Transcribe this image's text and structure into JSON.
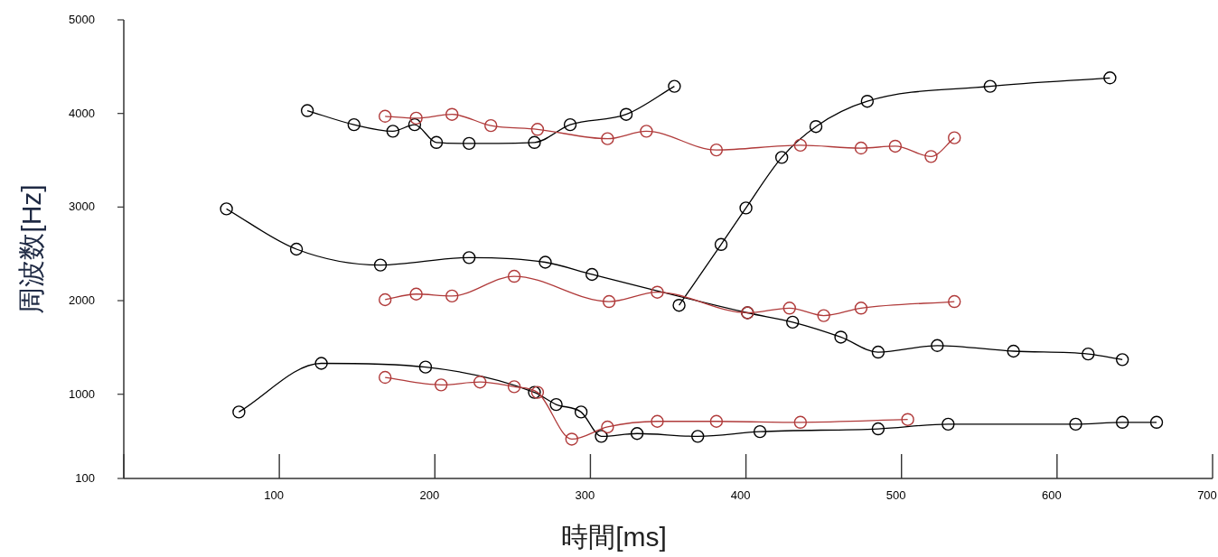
{
  "chart_data": {
    "type": "line",
    "xlabel": "時間[ms]",
    "ylabel": "周波数[Hz]",
    "xlim": [
      0,
      700
    ],
    "xticks": [
      {
        "value": 0,
        "label": null
      },
      100,
      200,
      300,
      400,
      500,
      600,
      700
    ],
    "ylim": [
      100,
      5000
    ],
    "yticks": [
      100,
      1000,
      2000,
      3000,
      4000,
      5000
    ],
    "grid": false,
    "marker": "circle",
    "line_style": "solid",
    "series": [
      {
        "color": "#000000",
        "x": [
          118,
          148,
          173,
          187,
          201,
          222,
          264,
          287,
          323,
          354
        ],
        "values": [
          4030,
          3880,
          3810,
          3880,
          3690,
          3680,
          3690,
          3880,
          3990,
          4290
        ]
      },
      {
        "color": "#000000",
        "x": [
          66,
          111,
          165,
          222,
          271,
          301,
          401,
          430,
          461,
          485,
          523,
          572,
          620,
          642
        ],
        "values": [
          2980,
          2550,
          2380,
          2460,
          2410,
          2280,
          1870,
          1770,
          1610,
          1450,
          1520,
          1460,
          1430,
          1370
        ]
      },
      {
        "color": "#000000",
        "x": [
          357,
          384,
          400,
          423,
          445,
          478,
          557,
          634
        ],
        "values": [
          1950,
          2600,
          2990,
          3530,
          3860,
          4130,
          4290,
          4380
        ]
      },
      {
        "color": "#000000",
        "x": [
          74,
          127,
          194,
          264,
          278,
          294,
          307,
          330,
          369,
          409,
          485,
          530,
          612,
          642,
          664
        ],
        "values": [
          810,
          1330,
          1290,
          1020,
          890,
          810,
          550,
          580,
          550,
          600,
          630,
          680,
          680,
          700,
          700
        ]
      },
      {
        "color": "#b03a3a",
        "x": [
          168,
          188,
          211,
          236,
          266,
          311,
          336,
          381,
          435,
          474,
          496,
          519,
          534
        ],
        "values": [
          3970,
          3950,
          3990,
          3870,
          3830,
          3730,
          3810,
          3610,
          3660,
          3630,
          3650,
          3540,
          3740
        ]
      },
      {
        "color": "#b03a3a",
        "x": [
          168,
          188,
          211,
          251,
          312,
          343,
          401,
          428,
          450,
          474,
          534
        ],
        "values": [
          2010,
          2070,
          2050,
          2260,
          1990,
          2090,
          1870,
          1920,
          1840,
          1920,
          1990
        ]
      },
      {
        "color": "#b03a3a",
        "x": [
          168,
          204,
          229,
          251,
          266,
          288,
          311,
          343,
          381,
          435,
          504
        ],
        "values": [
          1180,
          1100,
          1130,
          1080,
          1020,
          520,
          650,
          710,
          710,
          700,
          730
        ]
      }
    ]
  }
}
